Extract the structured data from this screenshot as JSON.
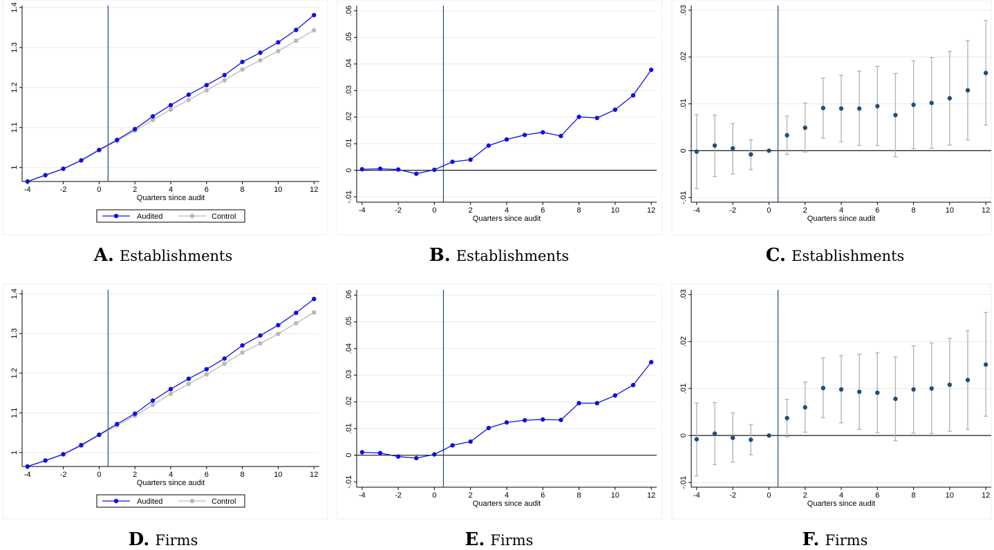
{
  "colors": {
    "audited": "#1010e0",
    "control": "#b8b8b8",
    "vline": "#1a4a7a",
    "ci": "#b0b0b0",
    "coef": "#1f4e79"
  },
  "captions": [
    {
      "letter": "A.",
      "text": "Establishments"
    },
    {
      "letter": "B.",
      "text": "Establishments"
    },
    {
      "letter": "C.",
      "text": "Establishments"
    },
    {
      "letter": "D.",
      "text": "Firms"
    },
    {
      "letter": "E.",
      "text": "Firms"
    },
    {
      "letter": "F.",
      "text": "Firms"
    }
  ],
  "legend": {
    "audited": "Audited",
    "control": "Control"
  },
  "chart_data": [
    {
      "id": "A",
      "type": "line",
      "xlabel": "Quarters since audit",
      "ylabel": "",
      "x": [
        -4,
        -3,
        -2,
        -1,
        0,
        1,
        2,
        3,
        4,
        5,
        6,
        7,
        8,
        9,
        10,
        11,
        12
      ],
      "xticks": [
        -4,
        -2,
        0,
        2,
        4,
        6,
        8,
        10,
        12
      ],
      "yticks": [
        1,
        1.1,
        1.2,
        1.3,
        1.4
      ],
      "ytick_labels": [
        "1",
        "1.1",
        "1.2",
        "1.3",
        "1.4"
      ],
      "xlim": [
        -4.3,
        12.3
      ],
      "ylim": [
        0.965,
        1.405
      ],
      "vline": 0.5,
      "grid": true,
      "legend": "bottom",
      "series": [
        {
          "name": "Audited",
          "values": [
            0.965,
            0.981,
            0.997,
            1.018,
            1.044,
            1.069,
            1.096,
            1.128,
            1.156,
            1.182,
            1.206,
            1.231,
            1.264,
            1.287,
            1.313,
            1.344,
            1.381
          ]
        },
        {
          "name": "Control",
          "values": [
            0.965,
            0.98,
            0.996,
            1.017,
            1.043,
            1.066,
            1.092,
            1.119,
            1.145,
            1.169,
            1.193,
            1.218,
            1.245,
            1.268,
            1.291,
            1.317,
            1.343
          ]
        }
      ]
    },
    {
      "id": "B",
      "type": "line",
      "xlabel": "Quarters since audit",
      "ylabel": "",
      "x": [
        -4,
        -3,
        -2,
        -1,
        0,
        1,
        2,
        3,
        4,
        5,
        6,
        7,
        8,
        9,
        10,
        11,
        12
      ],
      "xticks": [
        -4,
        -2,
        0,
        2,
        4,
        6,
        8,
        10,
        12
      ],
      "yticks": [
        -0.01,
        0,
        0.01,
        0.02,
        0.03,
        0.04,
        0.05,
        0.06
      ],
      "ytick_labels": [
        "-.01",
        "0",
        ".01",
        ".02",
        ".03",
        ".04",
        ".05",
        ".06"
      ],
      "xlim": [
        -4.3,
        12.3
      ],
      "ylim": [
        -0.012,
        0.062
      ],
      "vline": 0.5,
      "zeroline": true,
      "grid": true,
      "series": [
        {
          "values": [
            0.0004,
            0.0006,
            0.0003,
            -0.0013,
            0.0002,
            0.0032,
            0.004,
            0.0093,
            0.0116,
            0.0133,
            0.0143,
            0.0129,
            0.0201,
            0.0197,
            0.0228,
            0.0282,
            0.0378
          ]
        }
      ]
    },
    {
      "id": "C",
      "type": "scatter",
      "xlabel": "Quarters since audit",
      "ylabel": "",
      "x": [
        -4,
        -3,
        -2,
        -1,
        0,
        1,
        2,
        3,
        4,
        5,
        6,
        7,
        8,
        9,
        10,
        11,
        12
      ],
      "xticks": [
        -4,
        -2,
        0,
        2,
        4,
        6,
        8,
        10,
        12
      ],
      "yticks": [
        -0.01,
        0,
        0.01,
        0.02,
        0.03
      ],
      "ytick_labels": [
        "-.01",
        "0",
        ".01",
        ".02",
        ".03"
      ],
      "xlim": [
        -4.3,
        12.3
      ],
      "ylim": [
        -0.011,
        0.031
      ],
      "vline": 0.5,
      "zeroline": true,
      "grid": true,
      "series": [
        {
          "values": [
            -0.0002,
            0.0011,
            0.0005,
            -0.0008,
            0.0,
            0.0033,
            0.0049,
            0.0091,
            0.009,
            0.009,
            0.0095,
            0.0076,
            0.0098,
            0.0102,
            0.0112,
            0.0129,
            0.0166
          ],
          "lower": [
            -0.0081,
            -0.0055,
            -0.005,
            -0.004,
            0.0,
            -0.0008,
            -0.0003,
            0.0027,
            0.0019,
            0.0011,
            0.0011,
            -0.0013,
            0.0004,
            0.0005,
            0.0012,
            0.0023,
            0.0055
          ],
          "upper": [
            0.0077,
            0.0076,
            0.0058,
            0.0023,
            0.0,
            0.0074,
            0.0102,
            0.0155,
            0.0161,
            0.017,
            0.018,
            0.0165,
            0.0192,
            0.0199,
            0.0212,
            0.0235,
            0.0278
          ]
        }
      ]
    },
    {
      "id": "D",
      "type": "line",
      "xlabel": "Quarters since audit",
      "ylabel": "",
      "x": [
        -4,
        -3,
        -2,
        -1,
        0,
        1,
        2,
        3,
        4,
        5,
        6,
        7,
        8,
        9,
        10,
        11,
        12
      ],
      "xticks": [
        -4,
        -2,
        0,
        2,
        4,
        6,
        8,
        10,
        12
      ],
      "yticks": [
        1,
        1.1,
        1.2,
        1.3,
        1.4
      ],
      "ytick_labels": [
        "1",
        "1.1",
        "1.2",
        "1.3",
        "1.4"
      ],
      "xlim": [
        -4.3,
        12.3
      ],
      "ylim": [
        0.965,
        1.41
      ],
      "vline": 0.5,
      "grid": true,
      "legend": "bottom",
      "series": [
        {
          "name": "Audited",
          "values": [
            0.965,
            0.98,
            0.996,
            1.019,
            1.045,
            1.072,
            1.098,
            1.131,
            1.16,
            1.186,
            1.21,
            1.237,
            1.27,
            1.295,
            1.321,
            1.352,
            1.387
          ]
        },
        {
          "name": "Control",
          "values": [
            0.965,
            0.98,
            0.995,
            1.017,
            1.044,
            1.068,
            1.093,
            1.12,
            1.148,
            1.173,
            1.197,
            1.224,
            1.252,
            1.275,
            1.299,
            1.326,
            1.353
          ]
        }
      ]
    },
    {
      "id": "E",
      "type": "line",
      "xlabel": "Quarters since audit",
      "ylabel": "",
      "x": [
        -4,
        -3,
        -2,
        -1,
        0,
        1,
        2,
        3,
        4,
        5,
        6,
        7,
        8,
        9,
        10,
        11,
        12
      ],
      "xticks": [
        -4,
        -2,
        0,
        2,
        4,
        6,
        8,
        10,
        12
      ],
      "yticks": [
        -0.01,
        0,
        0.01,
        0.02,
        0.03,
        0.04,
        0.05,
        0.06
      ],
      "ytick_labels": [
        "-.01",
        "0",
        ".01",
        ".02",
        ".03",
        ".04",
        ".05",
        ".06"
      ],
      "xlim": [
        -4.3,
        12.3
      ],
      "ylim": [
        -0.012,
        0.062
      ],
      "vline": 0.5,
      "zeroline": true,
      "grid": true,
      "series": [
        {
          "values": [
            0.0011,
            0.0008,
            -0.0005,
            -0.0011,
            0.0003,
            0.0037,
            0.0051,
            0.0102,
            0.0123,
            0.0131,
            0.0134,
            0.0132,
            0.0195,
            0.0195,
            0.0224,
            0.0263,
            0.0349
          ]
        }
      ]
    },
    {
      "id": "F",
      "type": "scatter",
      "xlabel": "Quarters since audit",
      "ylabel": "",
      "x": [
        -4,
        -3,
        -2,
        -1,
        0,
        1,
        2,
        3,
        4,
        5,
        6,
        7,
        8,
        9,
        10,
        11,
        12
      ],
      "xticks": [
        -4,
        -2,
        0,
        2,
        4,
        6,
        8,
        10,
        12
      ],
      "yticks": [
        -0.01,
        0,
        0.01,
        0.02,
        0.03
      ],
      "ytick_labels": [
        "-.01",
        "0",
        ".01",
        ".02",
        ".03"
      ],
      "xlim": [
        -4.3,
        12.3
      ],
      "ylim": [
        -0.011,
        0.031
      ],
      "vline": 0.5,
      "zeroline": true,
      "grid": true,
      "series": [
        {
          "values": [
            -0.0008,
            0.0004,
            -0.0005,
            -0.0009,
            0.0,
            0.0037,
            0.006,
            0.0101,
            0.0098,
            0.0093,
            0.0091,
            0.0078,
            0.0098,
            0.01,
            0.0108,
            0.0118,
            0.0151
          ],
          "lower": [
            -0.0086,
            -0.0062,
            -0.0057,
            -0.0041,
            0.0,
            -0.0003,
            0.0007,
            0.0038,
            0.0027,
            0.0013,
            0.0006,
            -0.0011,
            0.0005,
            0.0004,
            0.0009,
            0.0013,
            0.0041
          ],
          "upper": [
            0.0069,
            0.007,
            0.0048,
            0.0023,
            0.0,
            0.0077,
            0.0114,
            0.0165,
            0.017,
            0.0173,
            0.0176,
            0.0167,
            0.0191,
            0.0197,
            0.0207,
            0.0223,
            0.0262
          ]
        }
      ]
    }
  ]
}
